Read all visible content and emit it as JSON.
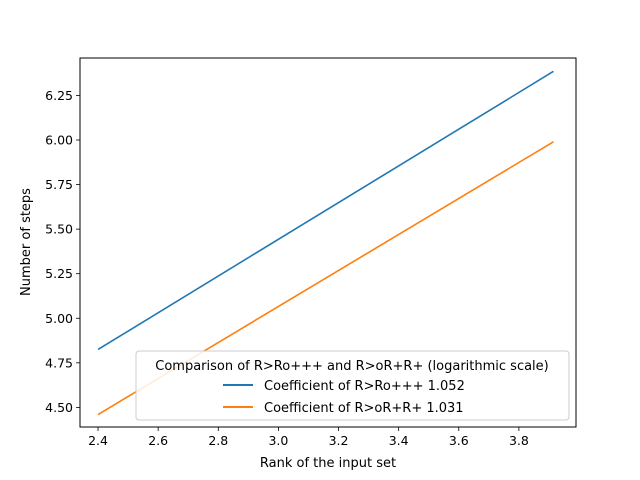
{
  "chart_data": {
    "type": "line",
    "xlabel": "Rank of the input set",
    "ylabel": "Number of steps",
    "xlim": [
      2.34,
      3.99
    ],
    "ylim": [
      4.39,
      6.46
    ],
    "x_ticks": [
      "2.4",
      "2.6",
      "2.8",
      "3.0",
      "3.2",
      "3.4",
      "3.6",
      "3.8"
    ],
    "y_ticks": [
      "4.50",
      "4.75",
      "5.00",
      "5.25",
      "5.50",
      "5.75",
      "6.00",
      "6.25"
    ],
    "grid": false,
    "legend": {
      "title": "Comparison of R>Ro+++ and R>oR+R+ (logarithmic scale)",
      "placement": "lower-right"
    },
    "series": [
      {
        "name": "Coefficient of R>Ro+++ 1.052",
        "color": "#1f77b4",
        "x": [
          2.4,
          3.915
        ],
        "y": [
          4.825,
          6.385
        ]
      },
      {
        "name": "Coefficient of R>oR+R+ 1.031",
        "color": "#ff7f0e",
        "x": [
          2.4,
          3.915
        ],
        "y": [
          4.46,
          5.99
        ]
      }
    ]
  }
}
